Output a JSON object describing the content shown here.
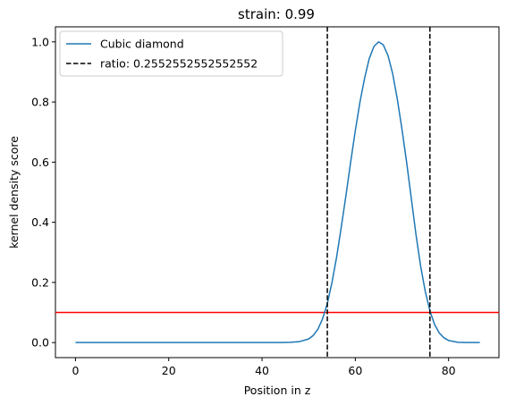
{
  "chart_data": {
    "type": "line",
    "title": "strain: 0.99",
    "xlabel": "Position in z",
    "ylabel": "kernel density score",
    "xlim": [
      -4.3,
      90.8
    ],
    "ylim": [
      -0.05,
      1.05
    ],
    "xticks": [
      0,
      20,
      40,
      60,
      80
    ],
    "yticks": [
      0.0,
      0.2,
      0.4,
      0.6,
      0.8,
      1.0
    ],
    "xtick_labels": [
      "0",
      "20",
      "40",
      "60",
      "80"
    ],
    "ytick_labels": [
      "0.0",
      "0.2",
      "0.4",
      "0.6",
      "0.8",
      "1.0"
    ],
    "grid": false,
    "legend_position": "top-left",
    "series": [
      {
        "name": "Cubic diamond",
        "color": "#1f77b4",
        "style": "solid",
        "x": [
          0,
          10,
          20,
          30,
          40,
          44,
          46,
          48,
          50,
          51,
          52,
          53,
          54,
          55,
          56,
          57,
          58,
          59,
          60,
          61,
          62,
          63,
          64,
          65,
          66,
          67,
          68,
          69,
          70,
          71,
          72,
          73,
          74,
          75,
          76,
          77,
          78,
          79,
          80,
          82,
          84,
          86.7
        ],
        "y": [
          0.0,
          0.0,
          0.0,
          0.0,
          0.0,
          0.0,
          0.001,
          0.003,
          0.012,
          0.024,
          0.045,
          0.08,
          0.13,
          0.2,
          0.285,
          0.385,
          0.49,
          0.6,
          0.705,
          0.8,
          0.88,
          0.945,
          0.985,
          1.0,
          0.99,
          0.955,
          0.895,
          0.81,
          0.71,
          0.6,
          0.48,
          0.36,
          0.255,
          0.17,
          0.105,
          0.06,
          0.032,
          0.016,
          0.007,
          0.001,
          0.0,
          0.0
        ]
      }
    ],
    "vlines": [
      {
        "x": 54.0,
        "color": "#000000",
        "style": "dashed",
        "label": "ratio: 0.2552552552552552"
      },
      {
        "x": 76.0,
        "color": "#000000",
        "style": "dashed"
      }
    ],
    "hlines": [
      {
        "y": 0.1,
        "color": "#ff0000",
        "style": "solid"
      }
    ]
  }
}
